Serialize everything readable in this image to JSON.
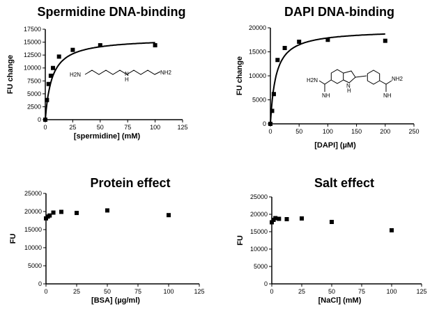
{
  "chart_data": [
    {
      "type": "scatter",
      "title": "Spermidine DNA-binding",
      "xlabel": "[spermidine] (mM)",
      "ylabel": "FU change",
      "xlim": [
        0,
        125
      ],
      "ylim": [
        0,
        17500
      ],
      "x_ticks": [
        0,
        25,
        50,
        75,
        100,
        125
      ],
      "y_ticks": [
        0,
        2500,
        5000,
        7500,
        10000,
        12500,
        15000,
        17500
      ],
      "grid": false,
      "series": [
        {
          "x": [
            0,
            1.5,
            3,
            5,
            7,
            12.5,
            25,
            50,
            100
          ],
          "values": [
            0,
            3800,
            6900,
            8500,
            10000,
            12200,
            13500,
            14400,
            14400
          ]
        }
      ],
      "fit": {
        "type": "saturation",
        "bmax": 15800,
        "kd": 6.0
      },
      "inset": {
        "type": "molecule",
        "labels": [
          "H2N",
          "N",
          "H",
          "NH2"
        ]
      }
    },
    {
      "type": "scatter",
      "title": "DAPI DNA-binding",
      "xlabel": "[DAPI] (µM)",
      "ylabel": "FU change",
      "xlim": [
        0,
        250
      ],
      "ylim": [
        0,
        20000
      ],
      "x_ticks": [
        0,
        50,
        100,
        150,
        200,
        250
      ],
      "y_ticks": [
        0,
        5000,
        10000,
        15000,
        20000
      ],
      "grid": false,
      "series": [
        {
          "x": [
            0,
            3,
            6,
            12.5,
            25,
            50,
            100,
            200
          ],
          "values": [
            0,
            2700,
            6200,
            13300,
            15800,
            17100,
            17500,
            17300
          ]
        }
      ],
      "fit": {
        "type": "saturation",
        "bmax": 19600,
        "kd": 9.5
      },
      "inset": {
        "type": "molecule",
        "labels": [
          "H2N",
          "NH",
          "N",
          "H",
          "NH2",
          "NH"
        ]
      }
    },
    {
      "type": "scatter",
      "title": "Protein effect",
      "xlabel": "[BSA] (µg/ml)",
      "ylabel": "FU",
      "xlim": [
        0,
        125
      ],
      "ylim": [
        0,
        25000
      ],
      "x_ticks": [
        0,
        25,
        50,
        75,
        100,
        125
      ],
      "y_ticks": [
        0,
        5000,
        10000,
        15000,
        20000,
        25000
      ],
      "grid": false,
      "series": [
        {
          "x": [
            0,
            1.5,
            3,
            6,
            12.5,
            25,
            50,
            100
          ],
          "values": [
            18100,
            18600,
            18900,
            19700,
            19900,
            19600,
            20300,
            19000
          ]
        }
      ]
    },
    {
      "type": "scatter",
      "title": "Salt effect",
      "xlabel": "[NaCl] (mM)",
      "ylabel": "FU",
      "xlim": [
        0,
        125
      ],
      "ylim": [
        0,
        25000
      ],
      "x_ticks": [
        0,
        25,
        50,
        75,
        100,
        125
      ],
      "y_ticks": [
        0,
        5000,
        10000,
        15000,
        20000,
        25000
      ],
      "grid": false,
      "series": [
        {
          "x": [
            0,
            1.5,
            3,
            6,
            12.5,
            25,
            50,
            100
          ],
          "values": [
            17700,
            18400,
            18900,
            18700,
            18600,
            18800,
            17800,
            15400
          ]
        }
      ]
    }
  ]
}
